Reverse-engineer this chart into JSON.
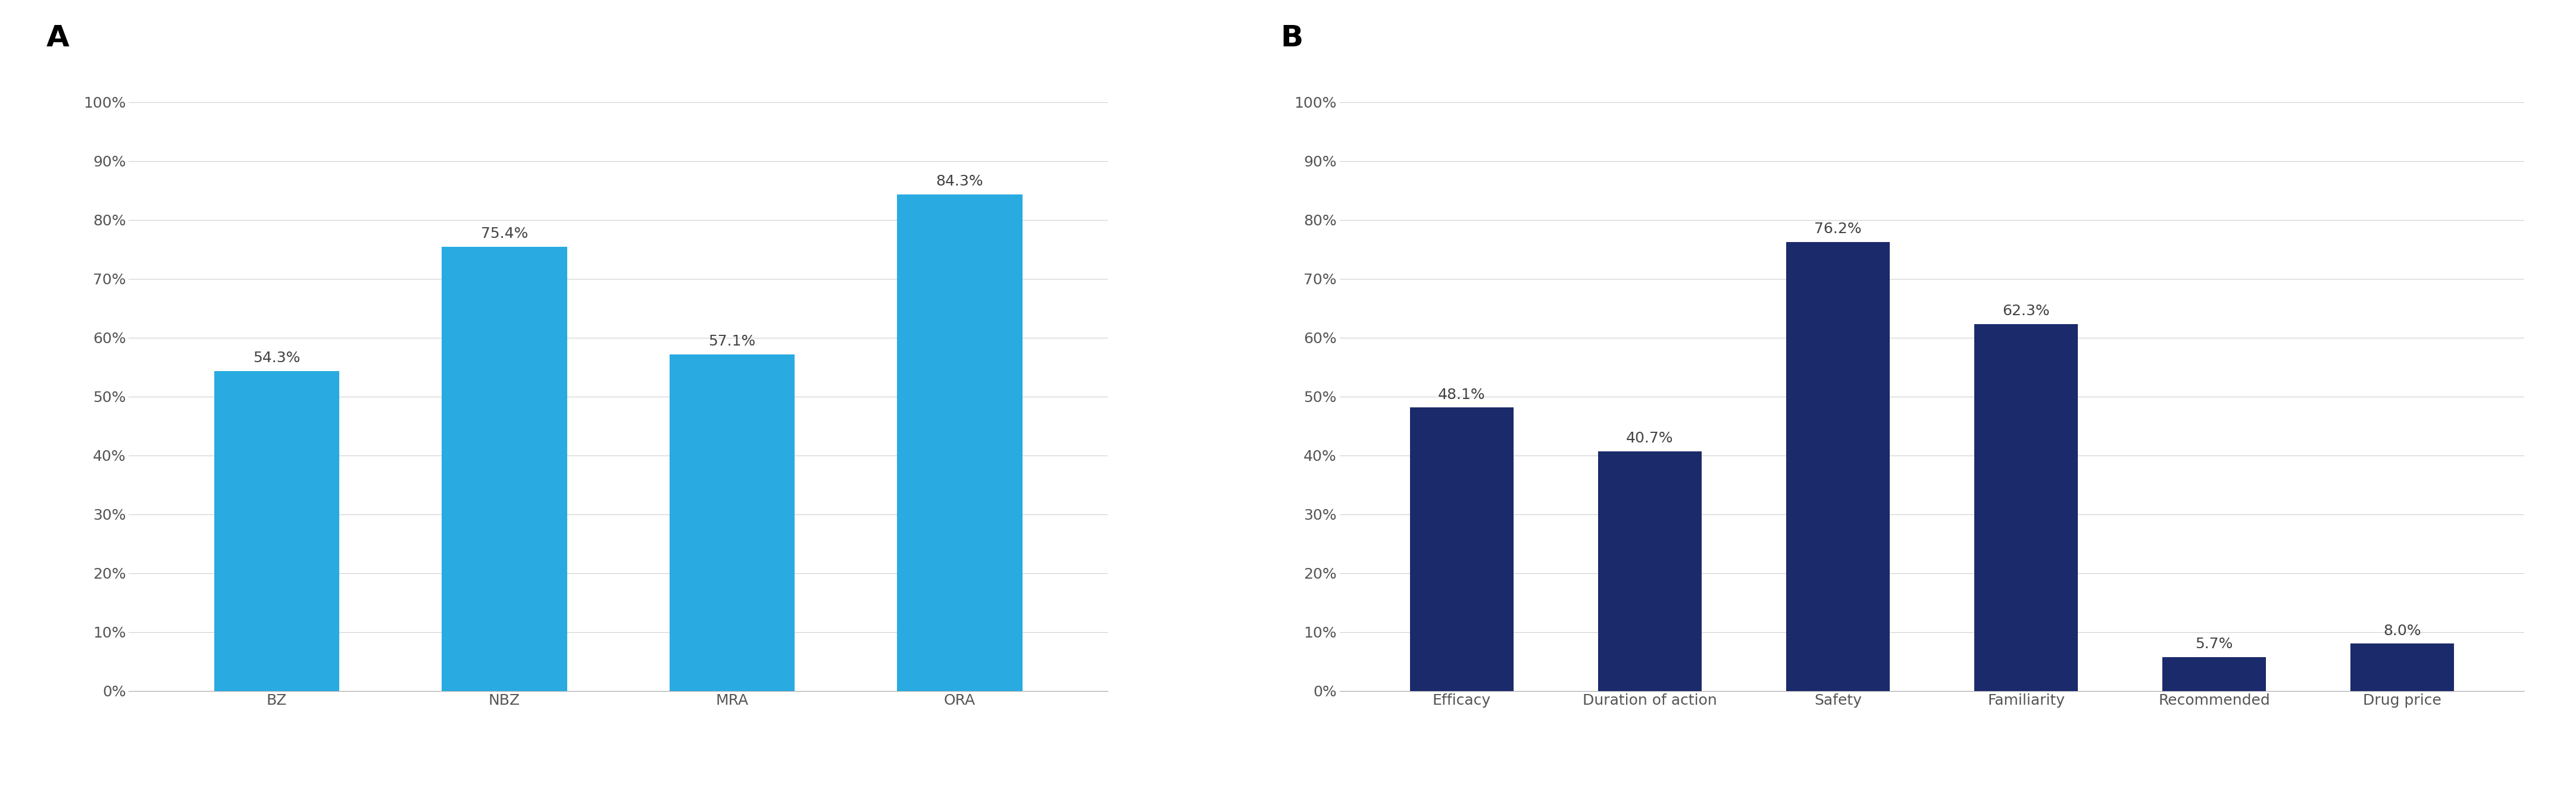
{
  "chart_A": {
    "categories": [
      "BZ",
      "NBZ",
      "MRA",
      "ORA"
    ],
    "values": [
      54.3,
      75.4,
      57.1,
      84.3
    ],
    "labels": [
      "54.3%",
      "75.4%",
      "57.1%",
      "84.3%"
    ],
    "bar_color": "#29ABE2",
    "label": "A"
  },
  "chart_B": {
    "categories": [
      "Efficacy",
      "Duration of action",
      "Safety",
      "Familiarity",
      "Recommended",
      "Drug price"
    ],
    "values": [
      48.1,
      40.7,
      76.2,
      62.3,
      5.7,
      8.0
    ],
    "labels": [
      "48.1%",
      "40.7%",
      "76.2%",
      "62.3%",
      "5.7%",
      "8.0%"
    ],
    "bar_color": "#1B2A6B",
    "label": "B"
  },
  "ylim": [
    0,
    100
  ],
  "yticks": [
    0,
    10,
    20,
    30,
    40,
    50,
    60,
    70,
    80,
    90,
    100
  ],
  "ytick_labels": [
    "0%",
    "10%",
    "20%",
    "30%",
    "40%",
    "50%",
    "60%",
    "70%",
    "80%",
    "90%",
    "100%"
  ],
  "grid_color": "#D0D0D0",
  "background_color": "#FFFFFF",
  "tick_fontsize": 18,
  "annotation_fontsize": 18,
  "panel_label_fontsize": 36,
  "bar_width": 0.55
}
